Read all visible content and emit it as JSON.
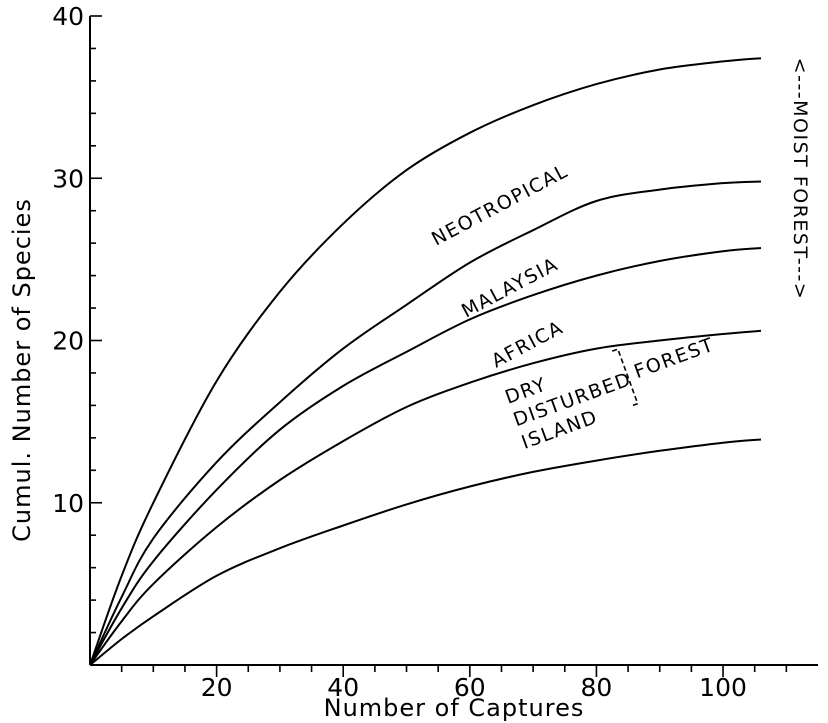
{
  "chart_data": {
    "type": "line",
    "xlabel": "Number of Captures",
    "ylabel": "Cumul. Number of Species",
    "xlim": [
      0,
      115
    ],
    "ylim": [
      0,
      40
    ],
    "x_ticks": [
      20,
      40,
      60,
      80,
      100
    ],
    "y_ticks": [
      10,
      20,
      30,
      40
    ],
    "grid": false,
    "series": [
      {
        "name": "NEOTROPICAL",
        "x": [
          0,
          5,
          10,
          20,
          30,
          40,
          50,
          60,
          70,
          80,
          90,
          100,
          106
        ],
        "y": [
          0,
          5.5,
          10,
          17.5,
          23,
          27.2,
          30.5,
          32.8,
          34.5,
          35.8,
          36.7,
          37.2,
          37.4
        ]
      },
      {
        "name": "MALAYSIA",
        "x": [
          0,
          5,
          10,
          20,
          30,
          40,
          50,
          60,
          70,
          80,
          90,
          100,
          106
        ],
        "y": [
          0,
          4.2,
          7.8,
          12.5,
          16.2,
          19.5,
          22.2,
          24.8,
          26.8,
          28.6,
          29.3,
          29.7,
          29.8
        ]
      },
      {
        "name": "AFRICA",
        "x": [
          0,
          5,
          10,
          20,
          30,
          40,
          50,
          60,
          70,
          80,
          90,
          100,
          106
        ],
        "y": [
          0,
          3.5,
          6.4,
          10.8,
          14.5,
          17.2,
          19.3,
          21.3,
          22.8,
          24,
          24.9,
          25.5,
          25.7
        ]
      },
      {
        "name": "",
        "x": [
          0,
          5,
          10,
          20,
          30,
          40,
          50,
          60,
          70,
          80,
          90,
          100,
          106
        ],
        "y": [
          0,
          2.7,
          5,
          8.5,
          11.4,
          13.8,
          15.9,
          17.4,
          18.6,
          19.5,
          20,
          20.4,
          20.6
        ]
      },
      {
        "name": "",
        "x": [
          0,
          5,
          10,
          20,
          30,
          40,
          50,
          60,
          70,
          80,
          90,
          100,
          106
        ],
        "y": [
          0,
          1.6,
          3,
          5.5,
          7.2,
          8.6,
          9.9,
          11,
          11.9,
          12.6,
          13.2,
          13.7,
          13.9
        ]
      }
    ],
    "labels": {
      "neotropical": "NEOTROPICAL",
      "malaysia": "MALAYSIA",
      "africa": "AFRICA",
      "dry": "DRY",
      "disturbed": "DISTURBED",
      "island": "ISLAND",
      "forest": "FOREST",
      "moist_forest": "<---MOIST FOREST--->"
    }
  }
}
